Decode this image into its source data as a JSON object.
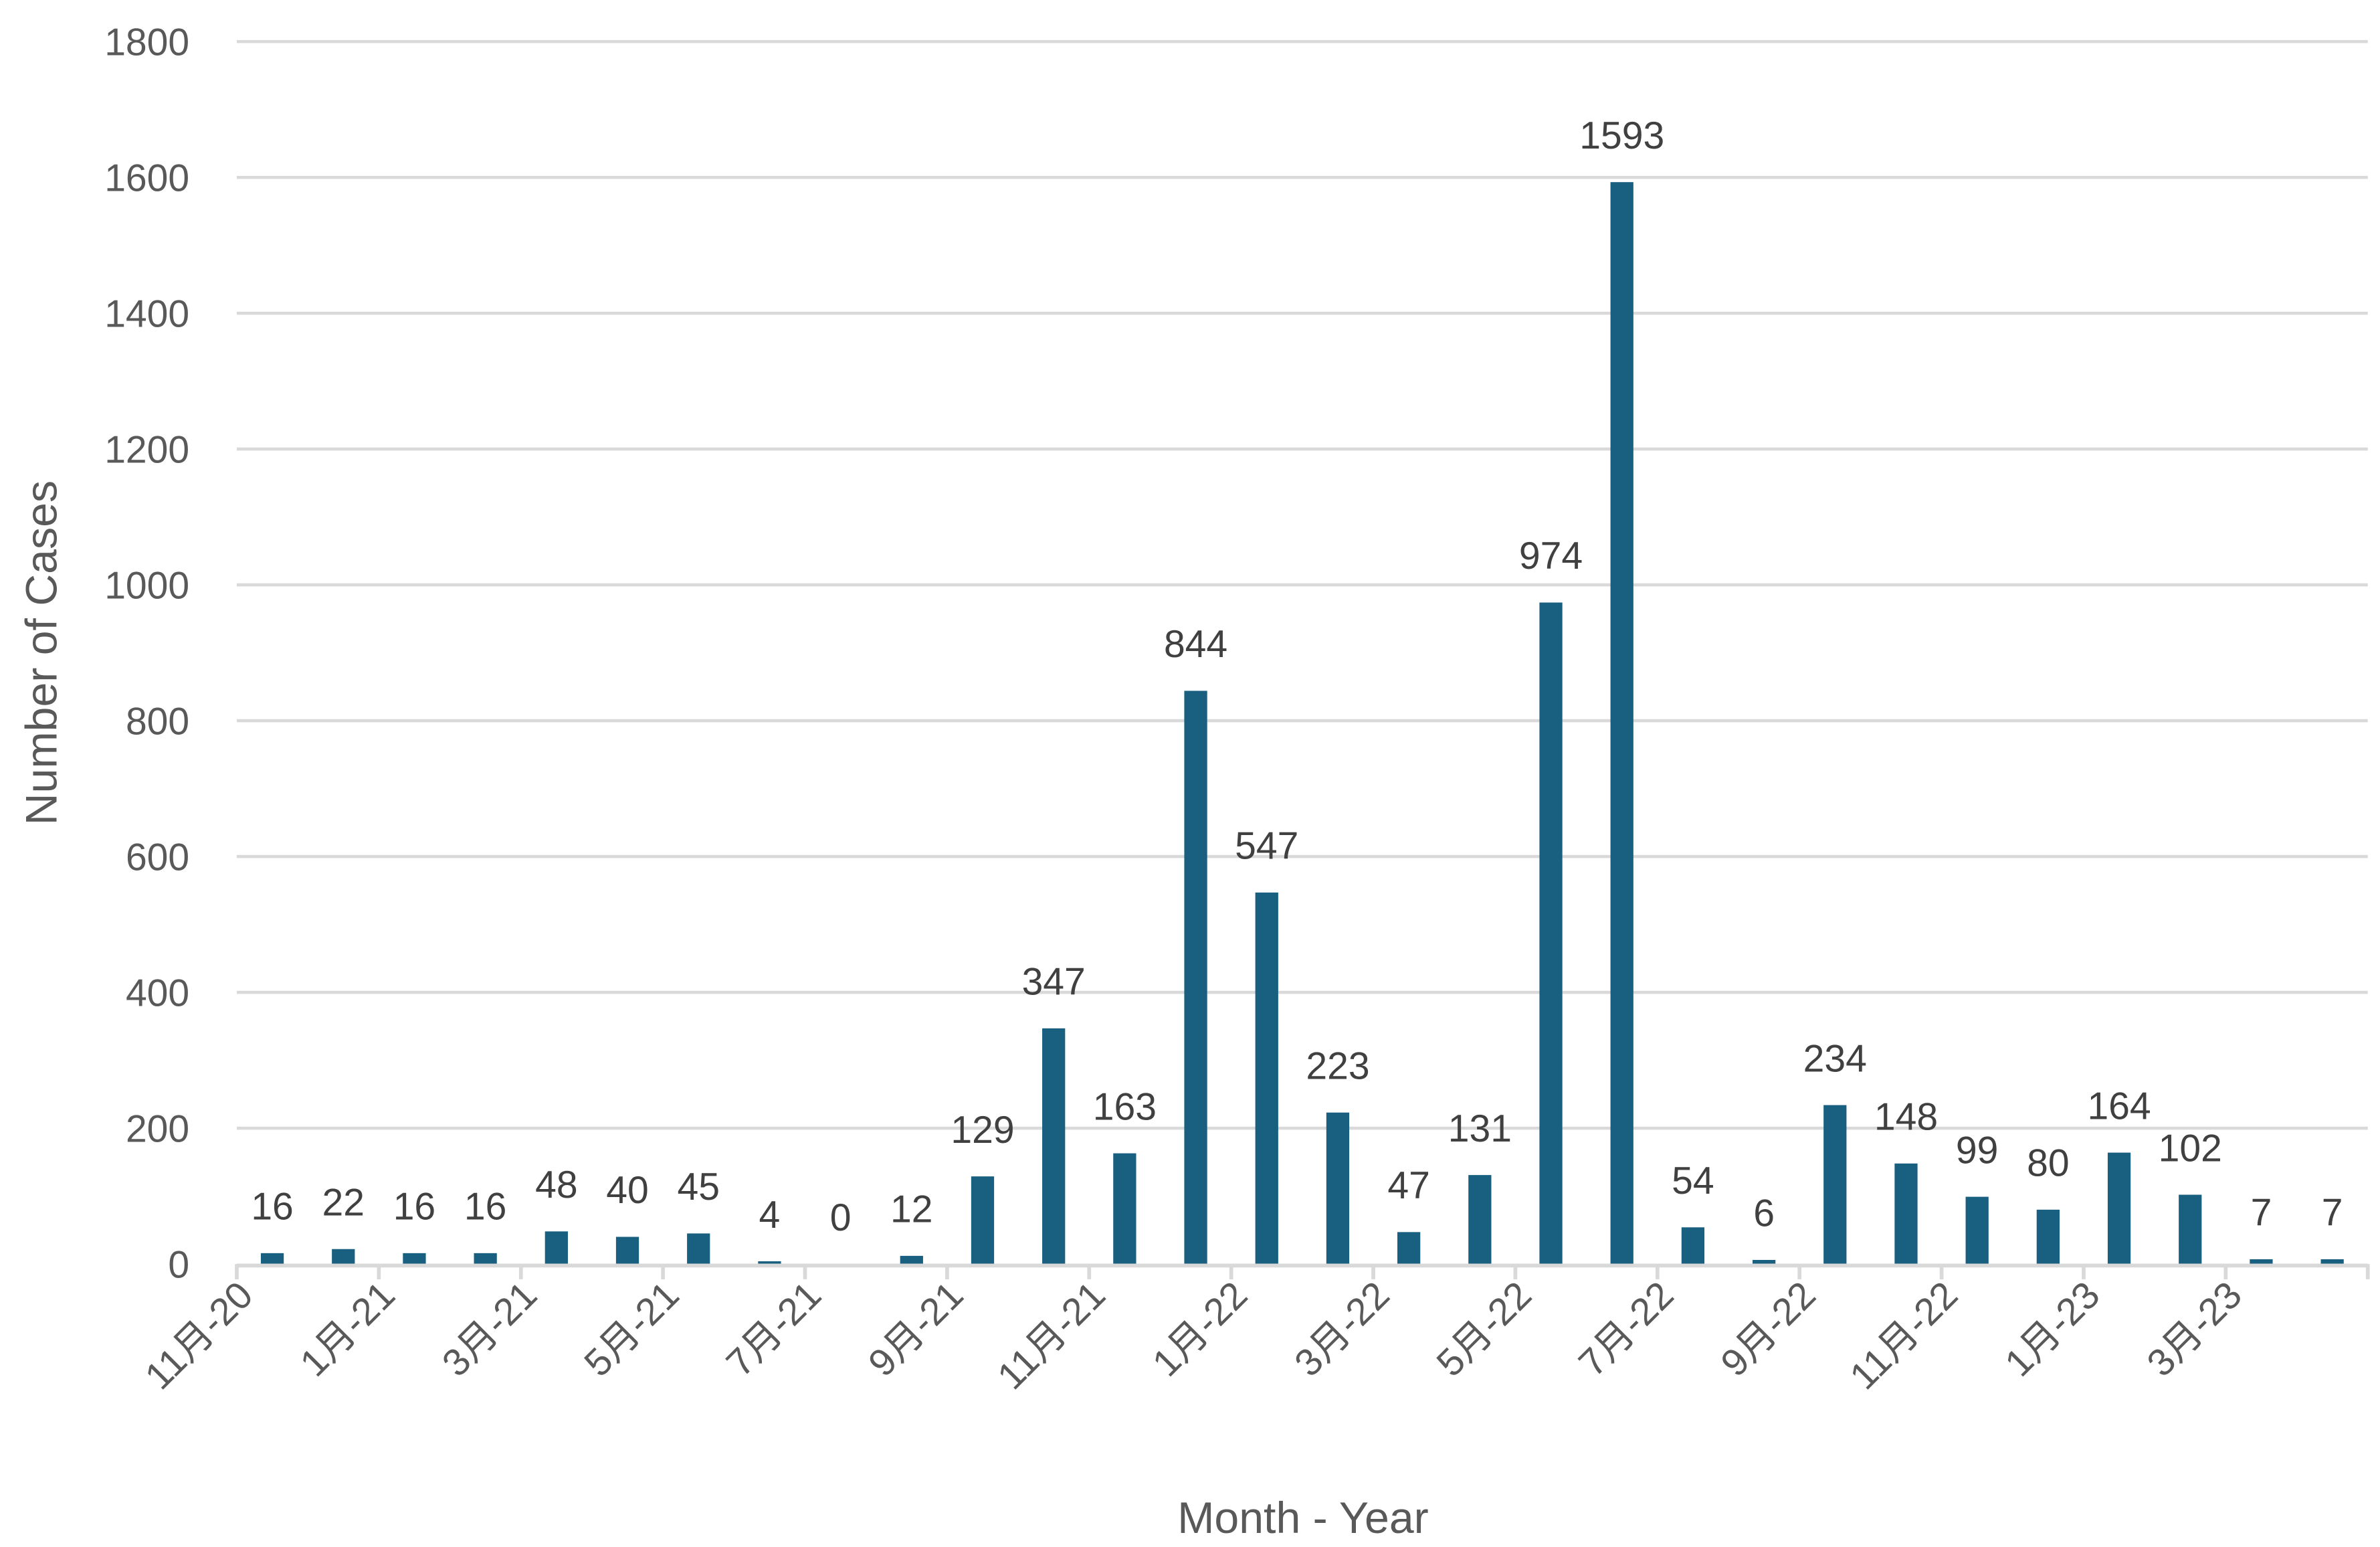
{
  "chart_data": {
    "type": "bar",
    "title": "",
    "xlabel": "Month - Year",
    "ylabel": "Number of Cases",
    "ylim": [
      0,
      1800
    ],
    "yticks": [
      0,
      200,
      400,
      600,
      800,
      1000,
      1200,
      1400,
      1600,
      1800
    ],
    "grid": true,
    "legend": "none",
    "bar_color": "#185f80",
    "categories": [
      "11月-20",
      "12月-20",
      "1月-21",
      "2月-21",
      "3月-21",
      "4月-21",
      "5月-21",
      "6月-21",
      "7月-21",
      "8月-21",
      "9月-21",
      "10月-21",
      "11月-21",
      "12月-21",
      "1月-22",
      "2月-22",
      "3月-22",
      "4月-22",
      "5月-22",
      "6月-22",
      "7月-22",
      "8月-22",
      "9月-22",
      "10月-22",
      "11月-22",
      "12月-22",
      "1月-23",
      "2月-23",
      "3月-23",
      "4月-23"
    ],
    "x_tick_labels": [
      "11月-20",
      "1月-21",
      "3月-21",
      "5月-21",
      "7月-21",
      "9月-21",
      "11月-21",
      "1月-22",
      "3月-22",
      "5月-22",
      "7月-22",
      "9月-22",
      "11月-22",
      "1月-23",
      "3月-23"
    ],
    "values": [
      16,
      22,
      16,
      16,
      48,
      40,
      45,
      4,
      0,
      12,
      129,
      347,
      163,
      844,
      547,
      223,
      47,
      131,
      974,
      1593,
      54,
      6,
      234,
      148,
      99,
      80,
      164,
      102,
      7,
      7
    ]
  }
}
